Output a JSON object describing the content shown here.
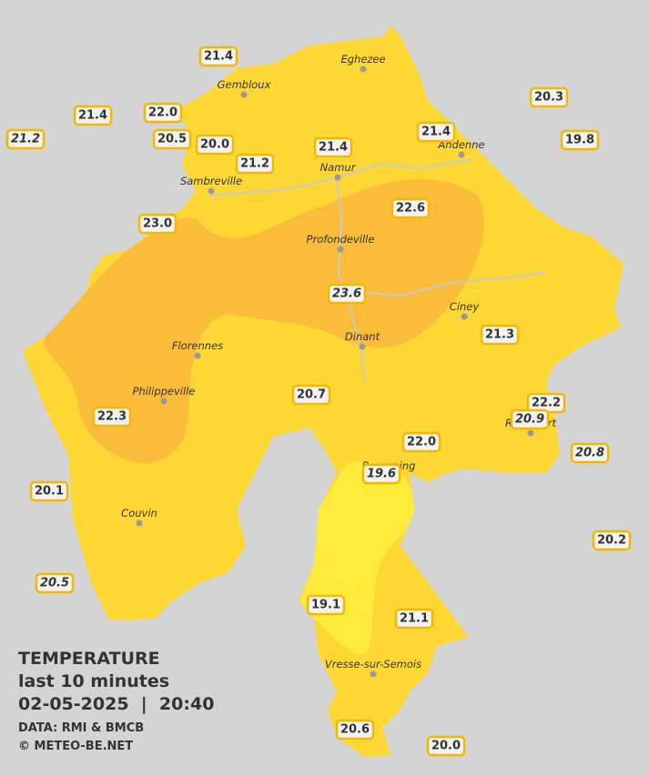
{
  "legend": {
    "title": "TEMPERATURE",
    "subtitle": "last 10 minutes",
    "datetime": "02-05-2025  |  20:40",
    "source": "DATA: RMI & BMCB",
    "copyright": "© METEO-BE.NET"
  },
  "cities": [
    "Eghezee",
    "Gembloux",
    "Andenne",
    "Namur",
    "Sambreville",
    "Profondeville",
    "Ciney",
    "Dinant",
    "Florennes",
    "Philippeville",
    "Rochefort",
    "Beauraing",
    "Couvin",
    "Vresse-sur-Semois"
  ],
  "stations": [
    {
      "label": "21.4",
      "italic": false
    },
    {
      "label": "21.4",
      "italic": false
    },
    {
      "label": "21.2",
      "italic": true
    },
    {
      "label": "22.0",
      "italic": false
    },
    {
      "label": "20.5",
      "italic": false
    },
    {
      "label": "20.0",
      "italic": false
    },
    {
      "label": "21.2",
      "italic": false
    },
    {
      "label": "21.4",
      "italic": false
    },
    {
      "label": "21.4",
      "italic": false
    },
    {
      "label": "20.3",
      "italic": false
    },
    {
      "label": "19.8",
      "italic": false
    },
    {
      "label": "23.0",
      "italic": false
    },
    {
      "label": "22.6",
      "italic": false
    },
    {
      "label": "23.6",
      "italic": true
    },
    {
      "label": "21.3",
      "italic": false
    },
    {
      "label": "20.7",
      "italic": false
    },
    {
      "label": "22.3",
      "italic": false
    },
    {
      "label": "22.2",
      "italic": false
    },
    {
      "label": "20.9",
      "italic": true
    },
    {
      "label": "22.0",
      "italic": false
    },
    {
      "label": "20.8",
      "italic": true
    },
    {
      "label": "19.6",
      "italic": true
    },
    {
      "label": "20.1",
      "italic": false
    },
    {
      "label": "20.2",
      "italic": false
    },
    {
      "label": "20.5",
      "italic": true
    },
    {
      "label": "19.1",
      "italic": false
    },
    {
      "label": "21.1",
      "italic": false
    },
    {
      "label": "20.6",
      "italic": false
    },
    {
      "label": "20.0",
      "italic": false
    }
  ]
}
